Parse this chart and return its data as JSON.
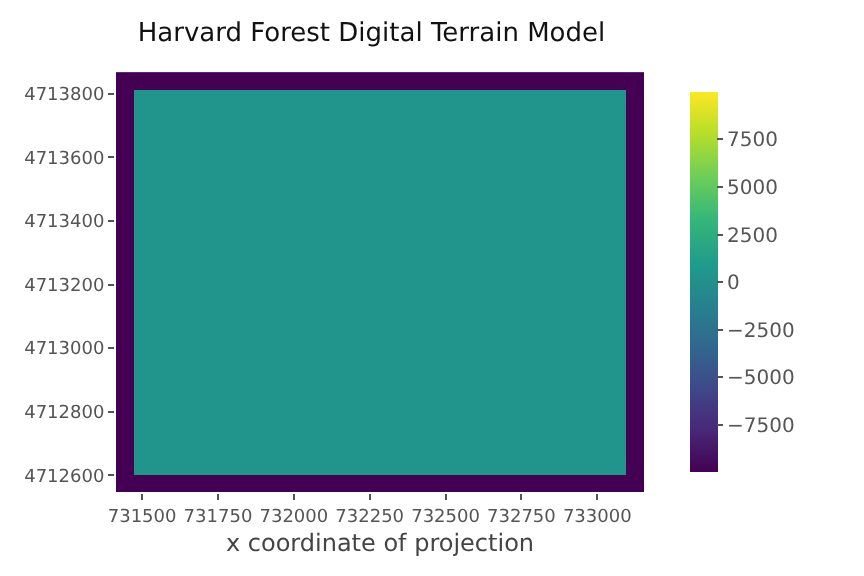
{
  "chart_data": {
    "type": "heatmap",
    "title": "Harvard Forest Digital Terrain Model",
    "xlabel": "x coordinate of projection",
    "x": [
      731443,
      731501,
      731559,
      731617,
      731675,
      731733,
      731791,
      731849,
      731907,
      731965,
      732023,
      732081,
      732139,
      732197,
      732255,
      732313,
      732371,
      732429,
      732487,
      732545,
      732603,
      732661,
      732719,
      732777,
      732835,
      732893,
      732951,
      733009,
      733067,
      733125
    ],
    "y": [
      4713840,
      4713785,
      4713730,
      4713675,
      4713620,
      4713565,
      4713510,
      4713455,
      4713400,
      4713345,
      4713290,
      4713235,
      4713180,
      4713125,
      4713070,
      4713015,
      4712960,
      4712905,
      4712850,
      4712795,
      4712740,
      4712685,
      4712630,
      4712575
    ],
    "cells": [
      [
        -9999,
        -9999,
        -9999,
        -9999,
        -9999,
        -9999,
        -9999,
        -9999,
        -9999,
        -9999,
        -9999,
        -9999,
        -9999,
        -9999,
        -9999,
        -9999,
        -9999,
        -9999,
        -9999,
        -9999,
        -9999,
        -9999,
        -9999,
        -9999,
        -9999,
        -9999,
        -9999,
        -9999,
        -9999,
        -9999
      ],
      [
        -9999,
        340,
        340,
        340,
        340,
        340,
        340,
        340,
        340,
        340,
        340,
        340,
        340,
        340,
        340,
        340,
        340,
        340,
        340,
        340,
        340,
        340,
        340,
        340,
        340,
        340,
        340,
        340,
        340,
        -9999
      ],
      [
        -9999,
        340,
        340,
        340,
        340,
        340,
        340,
        340,
        340,
        340,
        340,
        340,
        340,
        340,
        340,
        340,
        340,
        340,
        340,
        340,
        340,
        340,
        340,
        340,
        340,
        340,
        340,
        340,
        340,
        -9999
      ],
      [
        -9999,
        340,
        340,
        340,
        340,
        340,
        340,
        340,
        340,
        340,
        340,
        340,
        340,
        340,
        340,
        340,
        340,
        340,
        340,
        340,
        340,
        340,
        340,
        340,
        340,
        340,
        340,
        340,
        340,
        -9999
      ],
      [
        -9999,
        340,
        340,
        340,
        340,
        340,
        340,
        340,
        340,
        340,
        340,
        340,
        340,
        340,
        340,
        340,
        340,
        340,
        340,
        340,
        340,
        340,
        340,
        340,
        340,
        340,
        340,
        340,
        340,
        -9999
      ],
      [
        -9999,
        340,
        340,
        340,
        340,
        340,
        340,
        340,
        340,
        340,
        340,
        340,
        340,
        340,
        340,
        340,
        340,
        340,
        340,
        340,
        340,
        340,
        340,
        340,
        340,
        340,
        340,
        340,
        340,
        -9999
      ],
      [
        -9999,
        340,
        340,
        340,
        340,
        340,
        340,
        340,
        340,
        340,
        340,
        340,
        340,
        340,
        340,
        340,
        340,
        340,
        340,
        340,
        340,
        340,
        340,
        340,
        340,
        340,
        340,
        340,
        340,
        -9999
      ],
      [
        -9999,
        340,
        340,
        340,
        340,
        340,
        340,
        340,
        340,
        340,
        340,
        340,
        340,
        340,
        340,
        340,
        340,
        340,
        340,
        340,
        340,
        340,
        340,
        340,
        340,
        340,
        340,
        340,
        340,
        -9999
      ],
      [
        -9999,
        340,
        340,
        340,
        340,
        340,
        340,
        340,
        340,
        340,
        340,
        340,
        340,
        340,
        340,
        340,
        340,
        340,
        340,
        340,
        340,
        340,
        340,
        340,
        340,
        340,
        340,
        340,
        340,
        -9999
      ],
      [
        -9999,
        340,
        340,
        340,
        340,
        340,
        340,
        340,
        340,
        340,
        340,
        340,
        340,
        340,
        340,
        340,
        340,
        340,
        340,
        340,
        340,
        340,
        340,
        340,
        340,
        340,
        340,
        340,
        340,
        -9999
      ],
      [
        -9999,
        340,
        340,
        340,
        340,
        340,
        340,
        340,
        340,
        340,
        340,
        340,
        340,
        340,
        340,
        340,
        340,
        340,
        340,
        340,
        340,
        340,
        340,
        340,
        340,
        340,
        340,
        340,
        340,
        -9999
      ],
      [
        -9999,
        340,
        340,
        340,
        340,
        340,
        340,
        340,
        340,
        340,
        340,
        340,
        340,
        340,
        340,
        340,
        340,
        340,
        340,
        340,
        340,
        340,
        340,
        340,
        340,
        340,
        340,
        340,
        340,
        -9999
      ],
      [
        -9999,
        340,
        340,
        340,
        340,
        340,
        340,
        340,
        340,
        340,
        340,
        340,
        340,
        340,
        340,
        340,
        340,
        340,
        340,
        340,
        340,
        340,
        340,
        340,
        340,
        340,
        340,
        340,
        340,
        -9999
      ],
      [
        -9999,
        340,
        340,
        340,
        340,
        340,
        340,
        340,
        340,
        340,
        340,
        340,
        340,
        340,
        340,
        340,
        340,
        340,
        340,
        340,
        340,
        340,
        340,
        340,
        340,
        340,
        340,
        340,
        340,
        -9999
      ],
      [
        -9999,
        340,
        340,
        340,
        340,
        340,
        340,
        340,
        340,
        340,
        340,
        340,
        340,
        340,
        340,
        340,
        340,
        340,
        340,
        340,
        340,
        340,
        340,
        340,
        340,
        340,
        340,
        340,
        340,
        -9999
      ],
      [
        -9999,
        340,
        340,
        340,
        340,
        340,
        340,
        340,
        340,
        340,
        340,
        340,
        340,
        340,
        340,
        340,
        340,
        340,
        340,
        340,
        340,
        340,
        340,
        340,
        340,
        340,
        340,
        340,
        340,
        -9999
      ],
      [
        -9999,
        340,
        340,
        340,
        340,
        340,
        340,
        340,
        340,
        340,
        340,
        340,
        340,
        340,
        340,
        340,
        340,
        340,
        340,
        340,
        340,
        340,
        340,
        340,
        340,
        340,
        340,
        340,
        340,
        -9999
      ],
      [
        -9999,
        340,
        340,
        340,
        340,
        340,
        340,
        340,
        340,
        340,
        340,
        340,
        340,
        340,
        340,
        340,
        340,
        340,
        340,
        340,
        340,
        340,
        340,
        340,
        340,
        340,
        340,
        340,
        340,
        -9999
      ],
      [
        -9999,
        340,
        340,
        340,
        340,
        340,
        340,
        340,
        340,
        340,
        340,
        340,
        340,
        340,
        340,
        340,
        340,
        340,
        340,
        340,
        340,
        340,
        340,
        340,
        340,
        340,
        340,
        340,
        340,
        -9999
      ],
      [
        -9999,
        340,
        340,
        340,
        340,
        340,
        340,
        340,
        340,
        340,
        340,
        340,
        340,
        340,
        340,
        340,
        340,
        340,
        340,
        340,
        340,
        340,
        340,
        340,
        340,
        340,
        340,
        340,
        340,
        -9999
      ],
      [
        -9999,
        340,
        340,
        340,
        340,
        340,
        340,
        340,
        340,
        340,
        340,
        340,
        340,
        340,
        340,
        340,
        340,
        340,
        340,
        340,
        340,
        340,
        340,
        340,
        340,
        340,
        340,
        340,
        340,
        -9999
      ],
      [
        -9999,
        340,
        340,
        340,
        340,
        340,
        340,
        340,
        340,
        340,
        340,
        340,
        340,
        340,
        340,
        340,
        340,
        340,
        340,
        340,
        340,
        340,
        340,
        340,
        340,
        340,
        340,
        340,
        340,
        -9999
      ],
      [
        -9999,
        340,
        340,
        340,
        340,
        340,
        340,
        340,
        340,
        340,
        340,
        340,
        340,
        340,
        340,
        340,
        340,
        340,
        340,
        340,
        340,
        340,
        340,
        340,
        340,
        340,
        340,
        340,
        340,
        -9999
      ],
      [
        -9999,
        -9999,
        -9999,
        -9999,
        -9999,
        -9999,
        -9999,
        -9999,
        -9999,
        -9999,
        -9999,
        -9999,
        -9999,
        -9999,
        -9999,
        -9999,
        -9999,
        -9999,
        -9999,
        -9999,
        -9999,
        -9999,
        -9999,
        -9999,
        -9999,
        -9999,
        -9999,
        -9999,
        -9999,
        -9999
      ]
    ],
    "xlim": [
      731414,
      733154
    ],
    "ylim": [
      4712548,
      4713868
    ],
    "xticks": [
      731500,
      731750,
      732000,
      732250,
      732500,
      732750,
      733000
    ],
    "yticks": [
      4712600,
      4712800,
      4713000,
      4713200,
      4713400,
      4713600,
      4713800
    ],
    "clim": [
      -9999,
      9999
    ],
    "cticks": [
      -7500,
      -5000,
      -2500,
      0,
      2500,
      5000,
      7500
    ]
  }
}
